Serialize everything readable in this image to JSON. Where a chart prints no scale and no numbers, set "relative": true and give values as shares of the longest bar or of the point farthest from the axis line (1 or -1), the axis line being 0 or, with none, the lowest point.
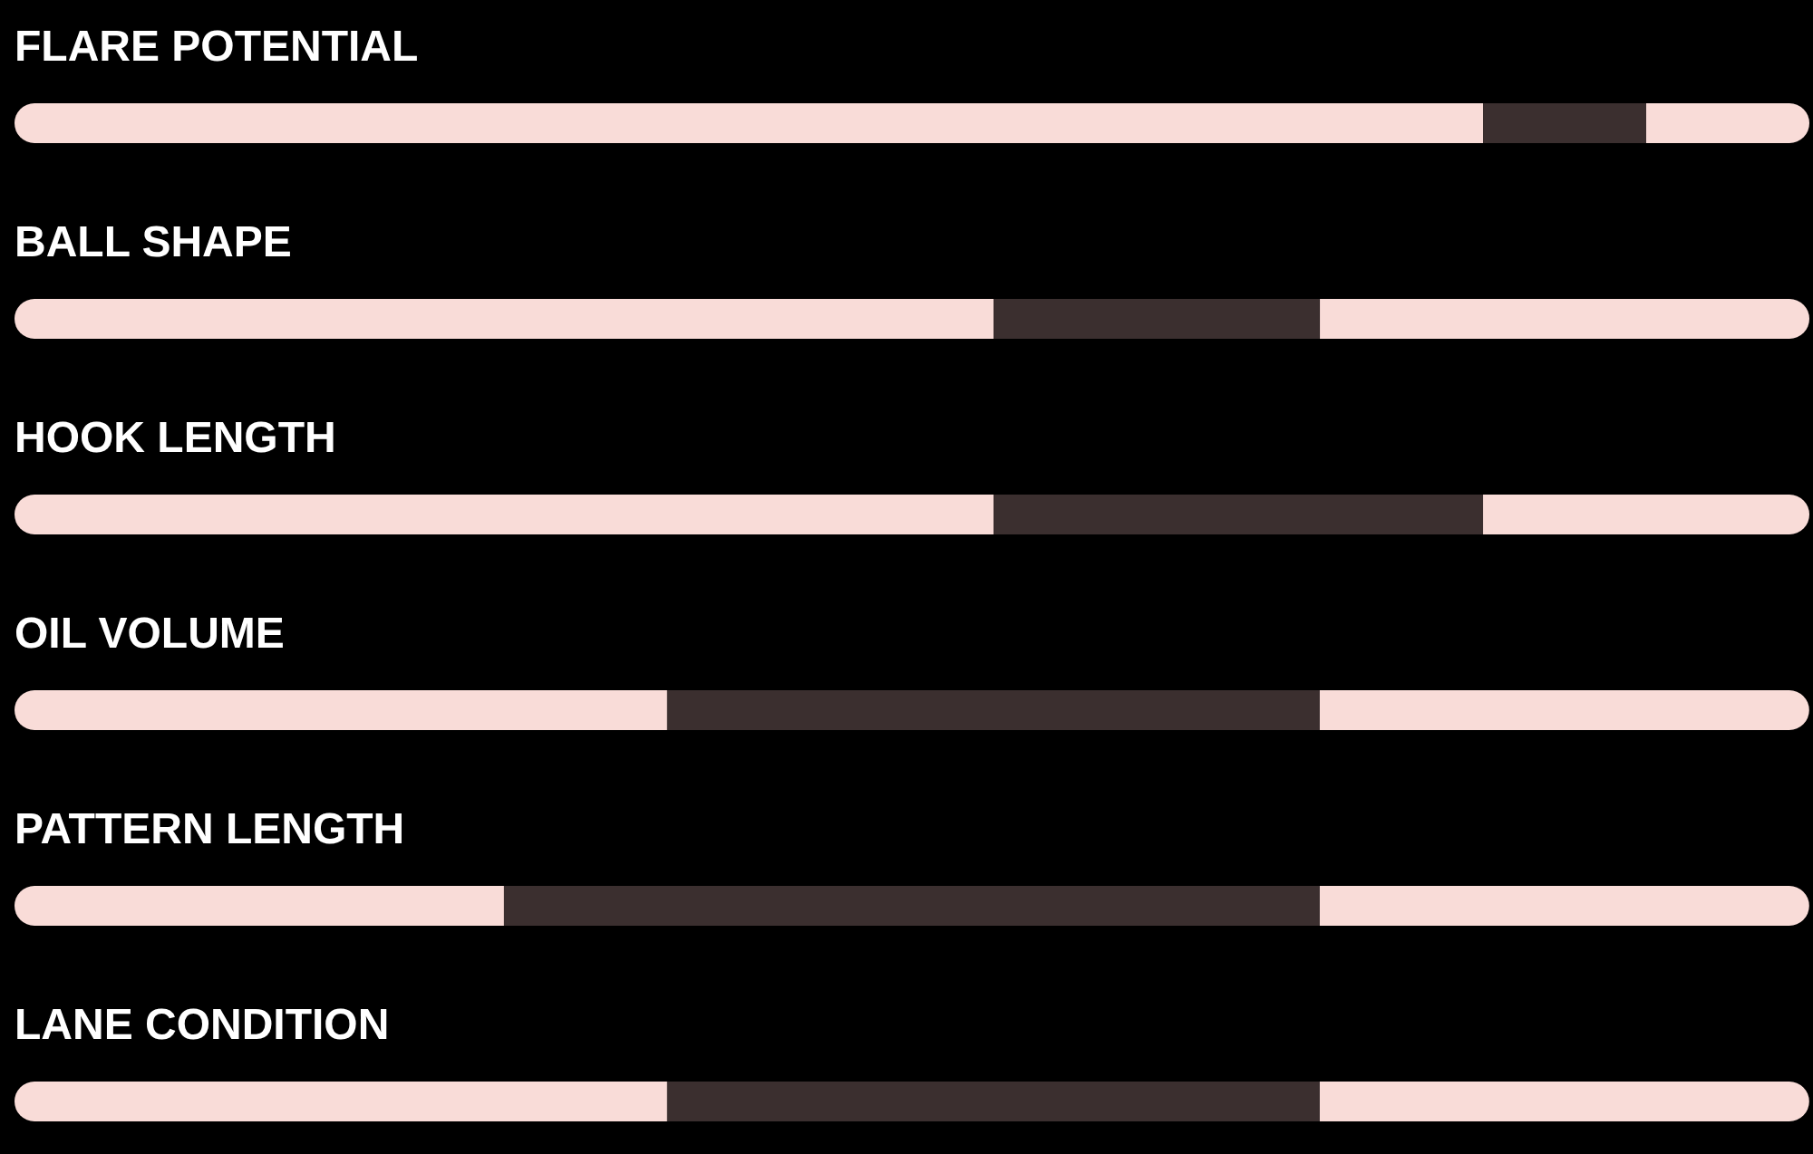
{
  "chart_data": {
    "type": "bar",
    "orientation": "horizontal",
    "stacked": true,
    "relative": true,
    "categories": [
      "FLARE POTENTIAL",
      "BALL SHAPE",
      "HOOK LENGTH",
      "OIL VOLUME",
      "PATTERN LENGTH",
      "LANE CONDITION"
    ],
    "series": [
      {
        "color": "#f9dcd8",
        "values": [
          0.8182,
          0.5455,
          0.5455,
          0.3636,
          0.2727,
          0.3636
        ]
      },
      {
        "color": "#3b2f2f",
        "values": [
          0.0909,
          0.1818,
          0.2727,
          0.3636,
          0.4545,
          0.3636
        ]
      },
      {
        "color": "#f9dcd8",
        "values": [
          0.0909,
          0.2727,
          0.1818,
          0.2727,
          0.2727,
          0.2727
        ]
      }
    ]
  }
}
